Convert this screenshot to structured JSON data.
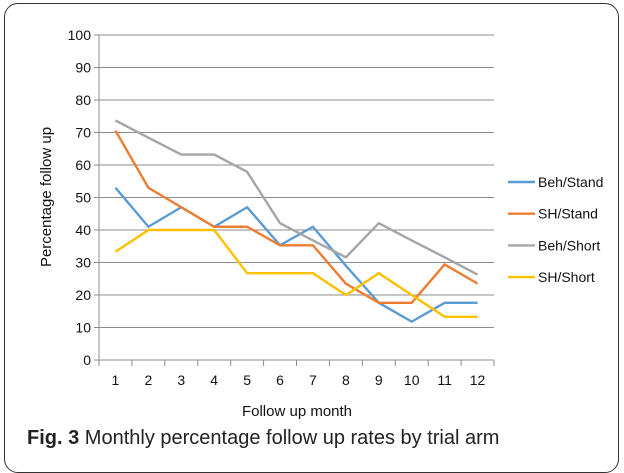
{
  "chart_data": {
    "type": "line",
    "title": "",
    "xlabel": "Follow up month",
    "ylabel": "Percentage follow up",
    "categories": [
      "1",
      "2",
      "3",
      "4",
      "5",
      "6",
      "7",
      "8",
      "9",
      "10",
      "11",
      "12"
    ],
    "ylim": [
      0,
      100
    ],
    "yticks": [
      0,
      10,
      20,
      30,
      40,
      50,
      60,
      70,
      80,
      90,
      100
    ],
    "grid": true,
    "legend": "right",
    "series": [
      {
        "name": "Beh/Stand",
        "color": "#5b9bd5",
        "values": [
          53,
          41,
          47,
          41,
          47,
          35.3,
          41,
          29,
          17.6,
          11.8,
          17.6,
          17.6
        ]
      },
      {
        "name": "SH/Stand",
        "color": "#ed7d31",
        "values": [
          70.6,
          53,
          47,
          41,
          41,
          35.3,
          35.3,
          23.5,
          17.6,
          17.6,
          29.4,
          23.5
        ]
      },
      {
        "name": "Beh/Short",
        "color": "#a5a5a5",
        "values": [
          73.7,
          68.4,
          63.2,
          63.2,
          57.9,
          42.1,
          36.8,
          31.6,
          42.1,
          36.8,
          31.6,
          26.3
        ]
      },
      {
        "name": "SH/Short",
        "color": "#ffc000",
        "values": [
          33.3,
          40,
          40,
          40,
          26.7,
          26.7,
          26.7,
          20,
          26.7,
          20,
          13.3,
          13.3
        ]
      }
    ]
  },
  "caption": {
    "label": "Fig. 3",
    "text": "Monthly percentage follow up rates by trial arm"
  }
}
